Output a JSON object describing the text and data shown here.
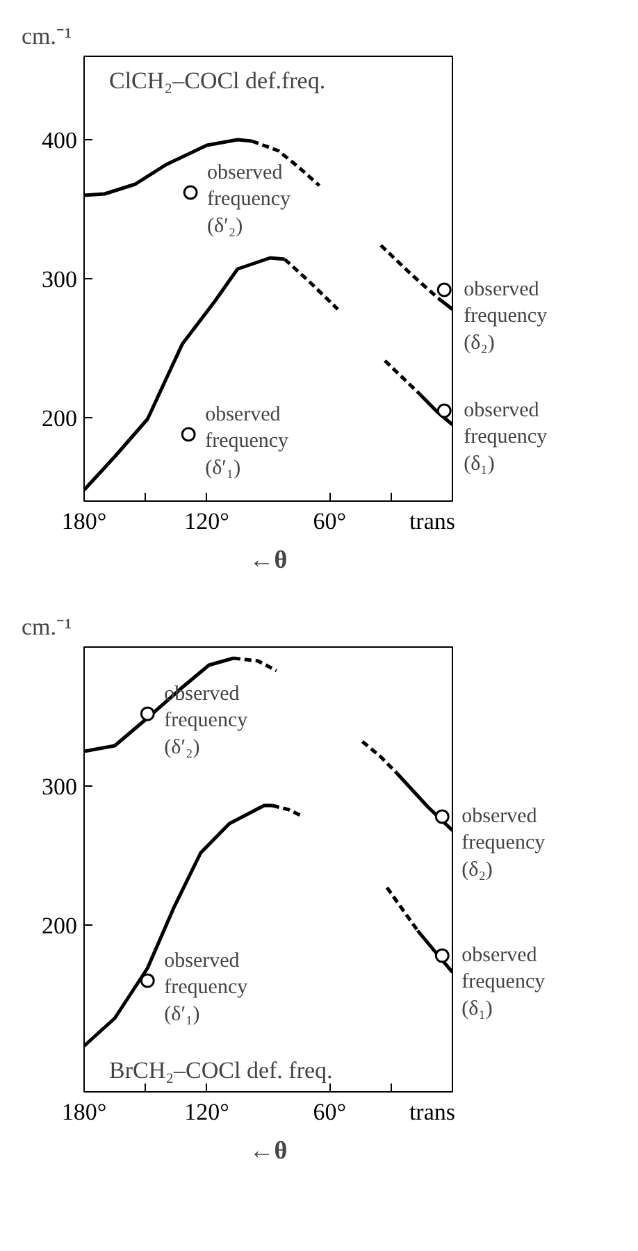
{
  "chart_data": [
    {
      "type": "line",
      "title": "ClCH₂–COCl def.freq.",
      "xlabel": "←θ",
      "ylabel": "cm.⁻¹",
      "xlim": [
        180,
        0
      ],
      "xticks": [
        {
          "value": 180,
          "label": "180°"
        },
        {
          "value": 150,
          "label": null
        },
        {
          "value": 120,
          "label": "120°"
        },
        {
          "value": 60,
          "label": "60°"
        },
        {
          "value": 30,
          "label": null
        },
        {
          "value": 0,
          "label": "trans"
        }
      ],
      "ylim": [
        140,
        460
      ],
      "yticks": [
        200,
        300,
        400
      ],
      "grid": false,
      "series": [
        {
          "color": "#000000",
          "line_style": "solid",
          "x": [
            180,
            170,
            155,
            140,
            120,
            105,
            98
          ],
          "values": [
            360,
            361,
            368,
            382,
            396,
            400,
            399
          ]
        },
        {
          "color": "#000000",
          "line_style": "dashed",
          "x": [
            98,
            85,
            75,
            65
          ],
          "values": [
            399,
            392,
            380,
            367
          ]
        },
        {
          "color": "#000000",
          "line_style": "solid",
          "x": [
            180,
            165,
            149,
            132,
            116,
            105,
            89,
            82
          ],
          "values": [
            148,
            172,
            199,
            253,
            284,
            307,
            315,
            314
          ]
        },
        {
          "color": "#000000",
          "line_style": "dashed",
          "x": [
            82,
            70,
            56
          ],
          "values": [
            314,
            298,
            278
          ]
        },
        {
          "color": "#000000",
          "line_style": "dashed",
          "x": [
            35,
            20,
            7
          ],
          "values": [
            324,
            303,
            286
          ]
        },
        {
          "color": "#000000",
          "line_style": "solid",
          "x": [
            7,
            0
          ],
          "values": [
            286,
            278
          ]
        },
        {
          "color": "#000000",
          "line_style": "dashed",
          "x": [
            33,
            16
          ],
          "values": [
            241,
            217
          ]
        },
        {
          "color": "#000000",
          "line_style": "solid",
          "x": [
            16,
            8,
            0
          ],
          "values": [
            217,
            205,
            195
          ]
        },
        {
          "type": "scatter",
          "color": "#000000",
          "marker": "circle",
          "x": [
            128,
            129,
            4,
            4
          ],
          "values": [
            362,
            188,
            292,
            205
          ]
        }
      ],
      "annotations": [
        {
          "text": "observed\nfrequency\n(δ′₂)",
          "x": 128,
          "y": 362
        },
        {
          "text": "observed\nfrequency\n(δ′₁)",
          "x": 129,
          "y": 188
        },
        {
          "text": "observed\nfrequency\n(δ₂)",
          "x": 4,
          "y": 292
        },
        {
          "text": "observed\nfrequency\n(δ₁)",
          "x": 4,
          "y": 205
        }
      ]
    },
    {
      "type": "line",
      "title": "BrCH₂–COCl def. freq.",
      "xlabel": "←θ",
      "ylabel": "cm.⁻¹",
      "xlim": [
        180,
        0
      ],
      "xticks": [
        {
          "value": 180,
          "label": "180°"
        },
        {
          "value": 150,
          "label": null
        },
        {
          "value": 120,
          "label": "120°"
        },
        {
          "value": 60,
          "label": "60°"
        },
        {
          "value": 30,
          "label": null
        },
        {
          "value": 0,
          "label": "trans"
        }
      ],
      "ylim": [
        80,
        400
      ],
      "yticks": [
        200,
        300
      ],
      "grid": false,
      "series": [
        {
          "color": "#000000",
          "line_style": "solid",
          "x": [
            180,
            165,
            149,
            132,
            119,
            107
          ],
          "values": [
            325,
            329,
            349,
            371,
            387,
            392
          ]
        },
        {
          "color": "#000000",
          "line_style": "dashed",
          "x": [
            107,
            95,
            86
          ],
          "values": [
            392,
            390,
            383
          ]
        },
        {
          "color": "#000000",
          "line_style": "solid",
          "x": [
            180,
            165,
            149,
            136,
            123,
            109,
            92,
            88
          ],
          "values": [
            113,
            133,
            169,
            213,
            252,
            273,
            286,
            286
          ]
        },
        {
          "color": "#000000",
          "line_style": "dashed",
          "x": [
            88,
            80,
            73
          ],
          "values": [
            286,
            283,
            278
          ]
        },
        {
          "color": "#000000",
          "line_style": "dashed",
          "x": [
            44,
            35,
            27
          ],
          "values": [
            332,
            321,
            309
          ]
        },
        {
          "color": "#000000",
          "line_style": "solid",
          "x": [
            27,
            12,
            0
          ],
          "values": [
            309,
            285,
            268
          ]
        },
        {
          "color": "#000000",
          "line_style": "dashed",
          "x": [
            32,
            17
          ],
          "values": [
            227,
            196
          ]
        },
        {
          "color": "#000000",
          "line_style": "solid",
          "x": [
            17,
            8,
            0
          ],
          "values": [
            196,
            180,
            166
          ]
        },
        {
          "type": "scatter",
          "color": "#000000",
          "marker": "circle",
          "x": [
            149,
            149,
            5,
            5
          ],
          "values": [
            352,
            160,
            278,
            178
          ]
        }
      ],
      "annotations": [
        {
          "text": "observed\nfrequency\n(δ′₂)",
          "x": 149,
          "y": 352
        },
        {
          "text": "observed\nfrequency\n(δ′₁)",
          "x": 149,
          "y": 160
        },
        {
          "text": "observed\nfrequency\n(δ₂)",
          "x": 5,
          "y": 278
        },
        {
          "text": "observed\nfrequency\n(δ₁)",
          "x": 5,
          "y": 178
        }
      ]
    }
  ]
}
